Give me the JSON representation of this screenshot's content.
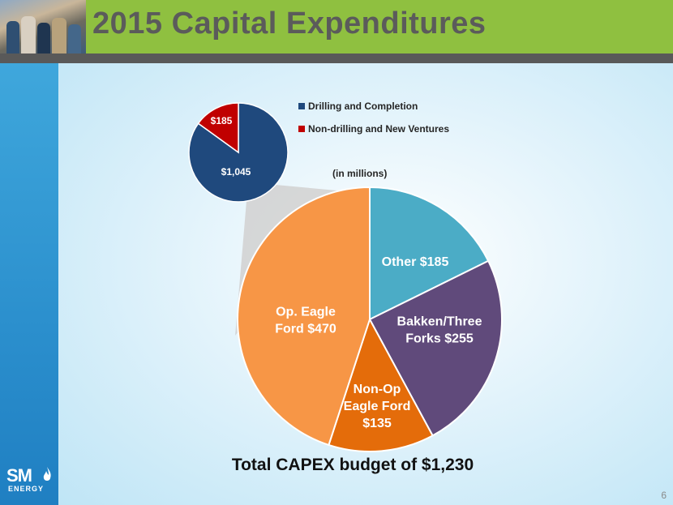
{
  "slide": {
    "title": "2015 Capital Expenditures",
    "units_note": "(in millions)",
    "total_text": "Total CAPEX budget of $1,230",
    "page_number": "6",
    "logo": {
      "main": "SM",
      "sub": "ENERGY",
      "icon": "flame-icon"
    },
    "colors": {
      "header_green": "#8fc040",
      "title_grey": "#5b5b5b",
      "left_strip_blue": "#2b8fcd"
    }
  },
  "chart_data": [
    {
      "type": "pie",
      "legend_position": "right",
      "slices": [
        {
          "name": "Drilling and Completion",
          "value": 1045,
          "label": "$1,045",
          "color": "#1f497d"
        },
        {
          "name": "Non-drilling and New Ventures",
          "value": 185,
          "label": "$185",
          "color": "#c00000"
        }
      ]
    },
    {
      "type": "pie",
      "slices": [
        {
          "name": "Other",
          "value": 185,
          "label_lines": [
            "Other $185"
          ],
          "color": "#4bacc6"
        },
        {
          "name": "Bakken/Three Forks",
          "value": 255,
          "label_lines": [
            "Bakken/Three",
            "Forks $255"
          ],
          "color": "#604a7b"
        },
        {
          "name": "Non-Op Eagle Ford",
          "value": 135,
          "label_lines": [
            "Non-Op",
            "Eagle Ford",
            "$135"
          ],
          "color": "#e46c0a"
        },
        {
          "name": "Op. Eagle Ford",
          "value": 470,
          "label_lines": [
            "Op. Eagle",
            "Ford $470"
          ],
          "color": "#f79646"
        }
      ]
    }
  ]
}
